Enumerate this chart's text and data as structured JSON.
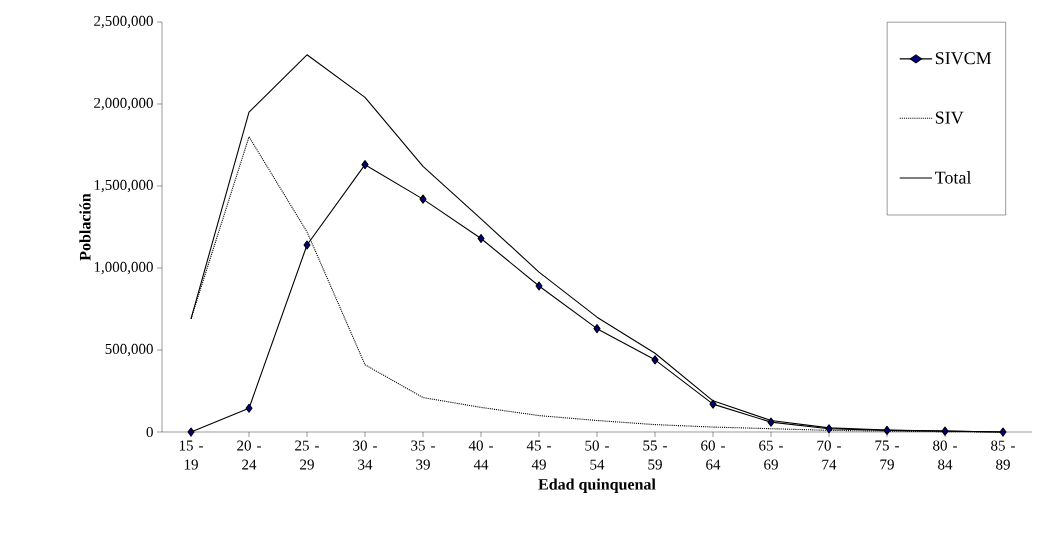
{
  "chart_data": {
    "type": "line",
    "xlabel": "Edad quinquenal",
    "ylabel": "Población",
    "categories": [
      "15 - 19",
      "20 - 24",
      "25 - 29",
      "30 - 34",
      "35 - 39",
      "40 - 44",
      "45 - 49",
      "50 - 54",
      "55 - 59",
      "60 - 64",
      "65 - 69",
      "70 - 74",
      "75 - 79",
      "80 - 84",
      "85 - 89"
    ],
    "series": [
      {
        "name": "SIVCM",
        "color": "#000000",
        "marker": "diamond",
        "line_style": "solid",
        "values": [
          0,
          145000,
          1140000,
          1630000,
          1420000,
          1180000,
          890000,
          630000,
          440000,
          170000,
          60000,
          20000,
          10000,
          5000,
          0
        ]
      },
      {
        "name": "SIV",
        "color": "#000000",
        "marker": "none",
        "line_style": "dotted",
        "values": [
          690000,
          1800000,
          1220000,
          410000,
          210000,
          150000,
          100000,
          70000,
          45000,
          30000,
          20000,
          10000,
          5000,
          2000,
          0
        ]
      },
      {
        "name": "Total",
        "color": "#000000",
        "marker": "none",
        "line_style": "solid",
        "values": [
          690000,
          1950000,
          2300000,
          2040000,
          1620000,
          1300000,
          975000,
          700000,
          480000,
          190000,
          70000,
          25000,
          12000,
          6000,
          0
        ]
      }
    ],
    "ylim": [
      0,
      2500000
    ],
    "yticks": [
      {
        "value": 0,
        "label": "0"
      },
      {
        "value": 500000,
        "label": "500,000"
      },
      {
        "value": 1000000,
        "label": "1,000,000"
      },
      {
        "value": 1500000,
        "label": "1,500,000"
      },
      {
        "value": 2000000,
        "label": "2,000,000"
      },
      {
        "value": 2500000,
        "label": "2,500,000"
      }
    ],
    "grid": false,
    "legend": "top right"
  }
}
